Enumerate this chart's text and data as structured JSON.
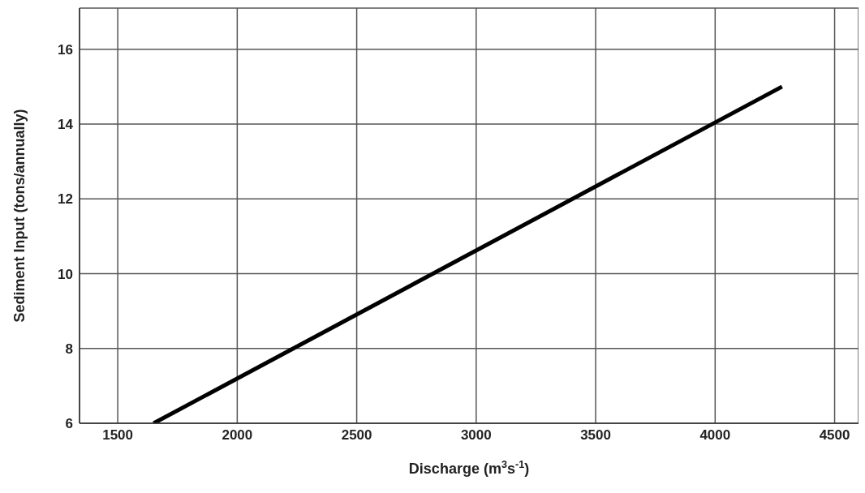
{
  "chart_data": {
    "type": "line",
    "xlabel": "Discharge (m$^{3}$s$^{-1}$)",
    "ylabel": "Sediment Input (tons/annually)",
    "series": [
      {
        "color": "#000000",
        "x": [
          1650,
          4280
        ],
        "values": [
          6,
          15
        ]
      }
    ],
    "xlim": [
      1340,
      4600
    ],
    "xticks": [
      1500,
      2000,
      2500,
      3000,
      3500,
      4000,
      4500
    ],
    "ylim": [
      6,
      17.1
    ],
    "yticks": [
      6,
      8,
      10,
      12,
      14,
      16
    ],
    "grid": true,
    "marker": "none",
    "line_style": "solid"
  }
}
